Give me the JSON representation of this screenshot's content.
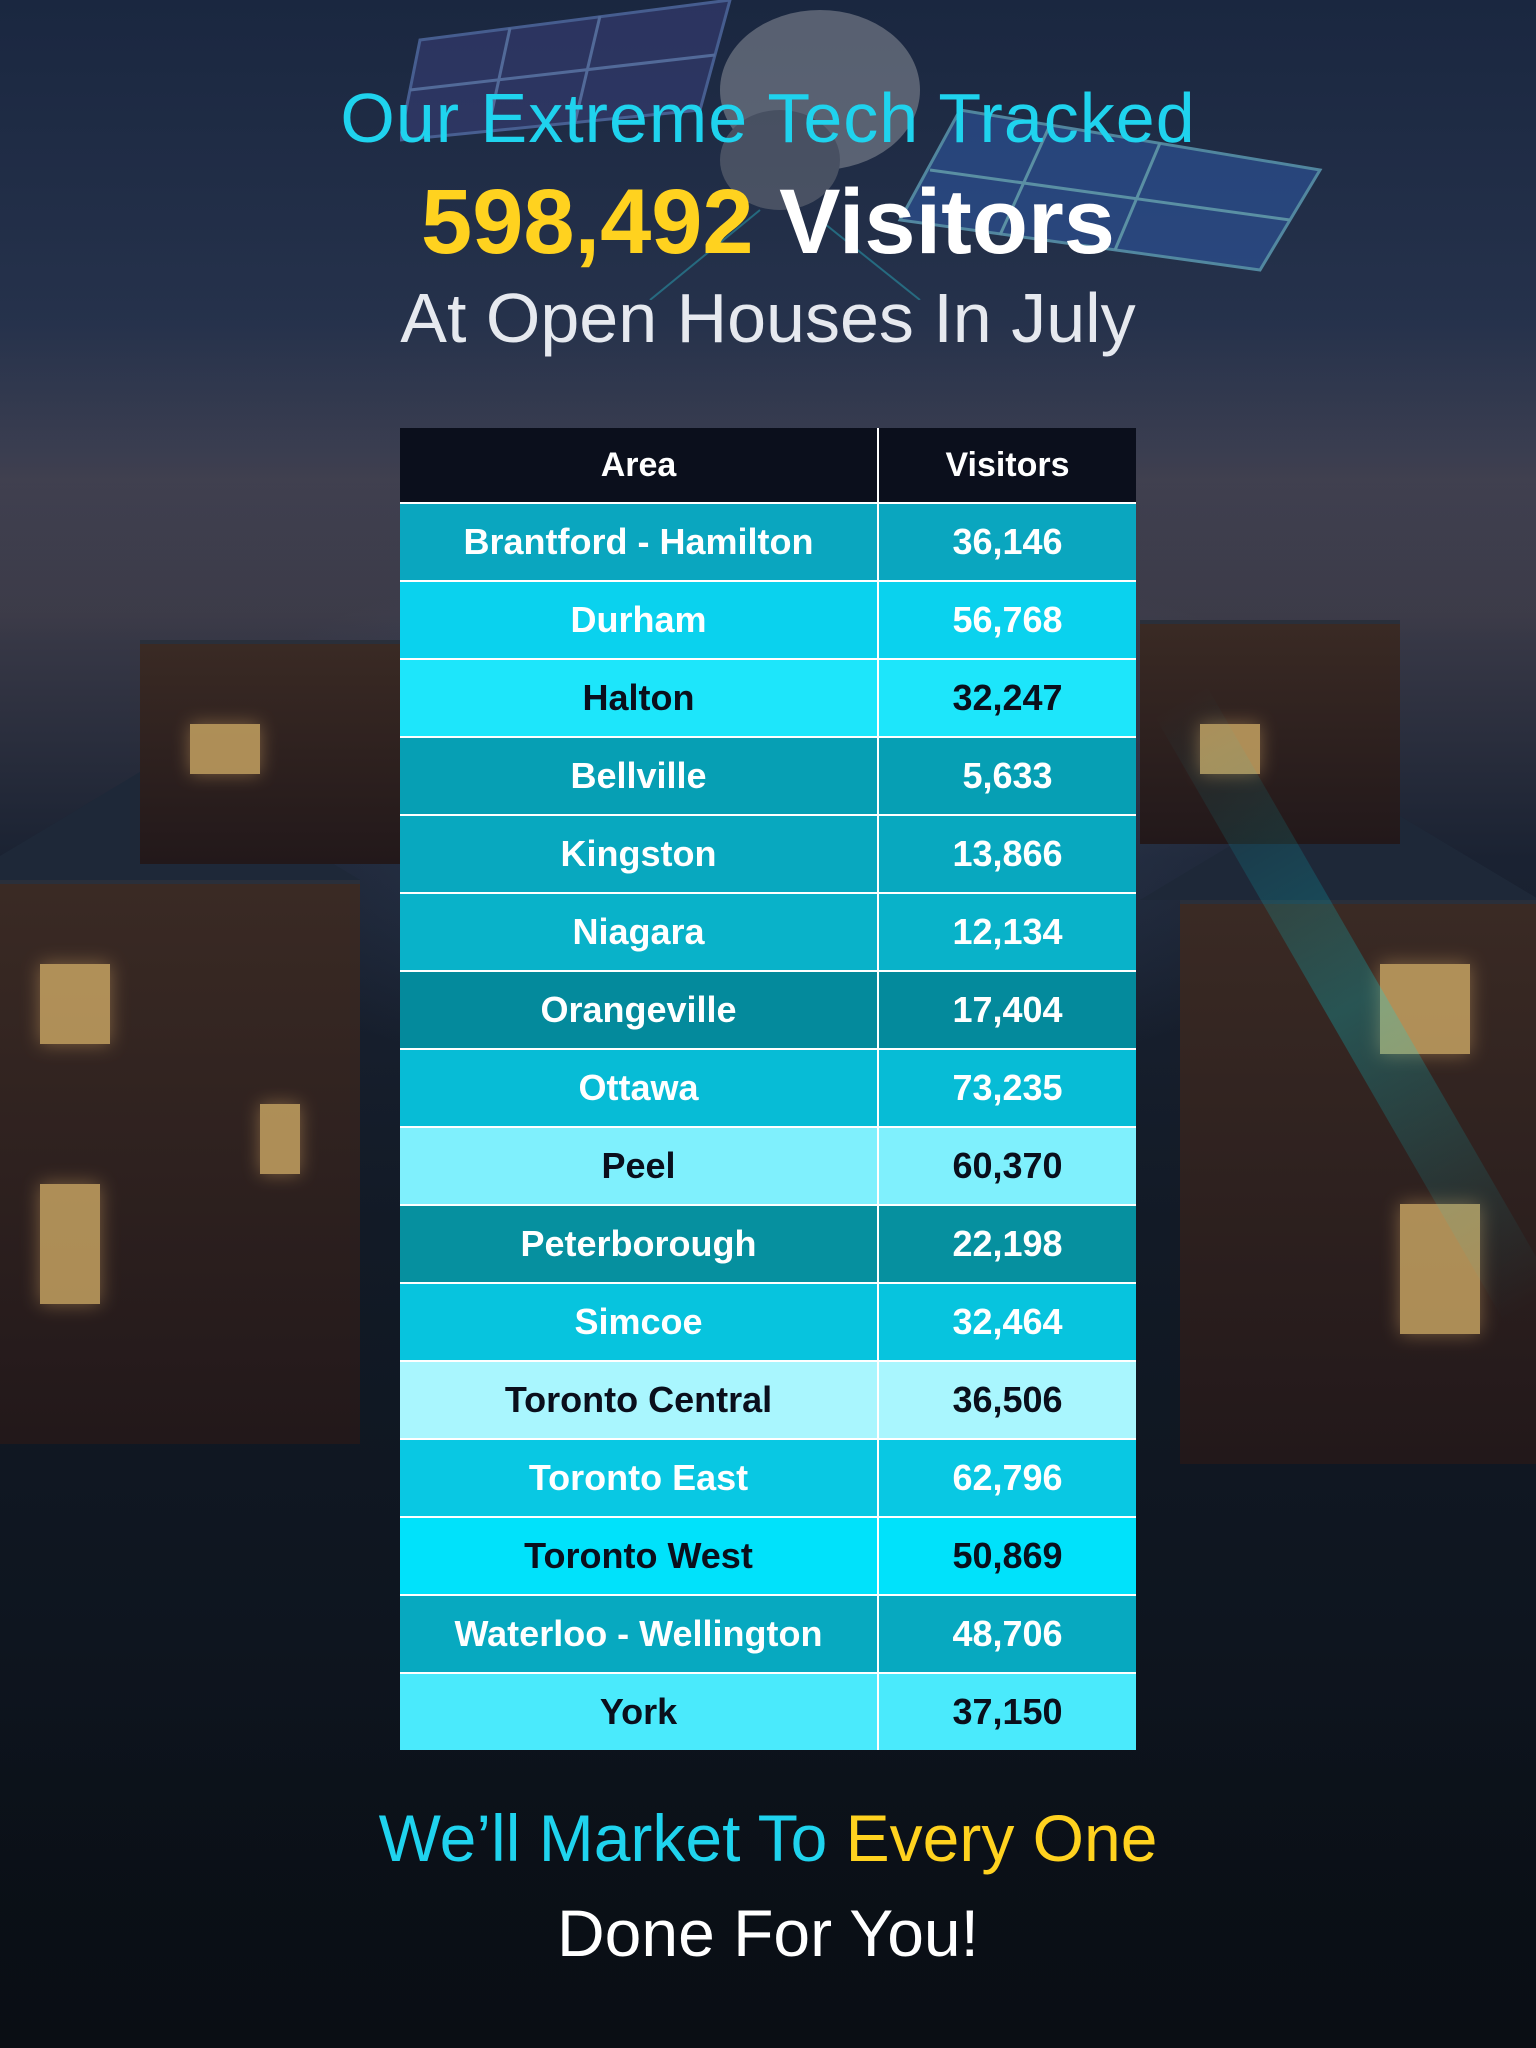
{
  "header": {
    "line1": "Our Extreme Tech Tracked",
    "count": "598,492",
    "count_suffix": "Visitors",
    "line3": "At Open Houses In July"
  },
  "table": {
    "columns": [
      "Area",
      "Visitors"
    ],
    "rows": [
      {
        "area": "Brantford - Hamilton",
        "visitors": "36,146",
        "bg": "#0aa6bf",
        "fg": "#ffffff"
      },
      {
        "area": "Durham",
        "visitors": "56,768",
        "bg": "#0ad2ee",
        "fg": "#ffffff"
      },
      {
        "area": "Halton",
        "visitors": "32,247",
        "bg": "#1de6fb",
        "fg": "#0a0f1c"
      },
      {
        "area": "Bellville",
        "visitors": "5,633",
        "bg": "#069fb4",
        "fg": "#ffffff"
      },
      {
        "area": "Kingston",
        "visitors": "13,866",
        "bg": "#08a8bf",
        "fg": "#ffffff"
      },
      {
        "area": "Niagara",
        "visitors": "12,134",
        "bg": "#09b2c9",
        "fg": "#ffffff"
      },
      {
        "area": "Orangeville",
        "visitors": "17,404",
        "bg": "#048a9c",
        "fg": "#ffffff"
      },
      {
        "area": "Ottawa",
        "visitors": "73,235",
        "bg": "#07bcd6",
        "fg": "#ffffff"
      },
      {
        "area": "Peel",
        "visitors": "60,370",
        "bg": "#7ff0fd",
        "fg": "#0a0f1c"
      },
      {
        "area": "Peterborough",
        "visitors": "22,198",
        "bg": "#06909f",
        "fg": "#ffffff"
      },
      {
        "area": "Simcoe",
        "visitors": "32,464",
        "bg": "#07c4de",
        "fg": "#ffffff"
      },
      {
        "area": "Toronto Central",
        "visitors": "36,506",
        "bg": "#a9f6fe",
        "fg": "#0a0f1c"
      },
      {
        "area": "Toronto East",
        "visitors": "62,796",
        "bg": "#09c8e3",
        "fg": "#ffffff"
      },
      {
        "area": "Toronto West",
        "visitors": "50,869",
        "bg": "#00e2fb",
        "fg": "#0a0f1c"
      },
      {
        "area": "Waterloo - Wellington",
        "visitors": "48,706",
        "bg": "#07a9c0",
        "fg": "#ffffff"
      },
      {
        "area": "York",
        "visitors": "37,150",
        "bg": "#4aeafc",
        "fg": "#0a0f1c"
      }
    ]
  },
  "footer": {
    "line1_part1": "We’ll Market To ",
    "line1_part2": "Every One",
    "line2": "Done For You!"
  },
  "colors": {
    "accent_cyan": "#1fd3ee",
    "accent_yellow": "#ffd21f",
    "header_row": "#0b0f1c"
  },
  "icons": {
    "satellite": "satellite-icon"
  }
}
